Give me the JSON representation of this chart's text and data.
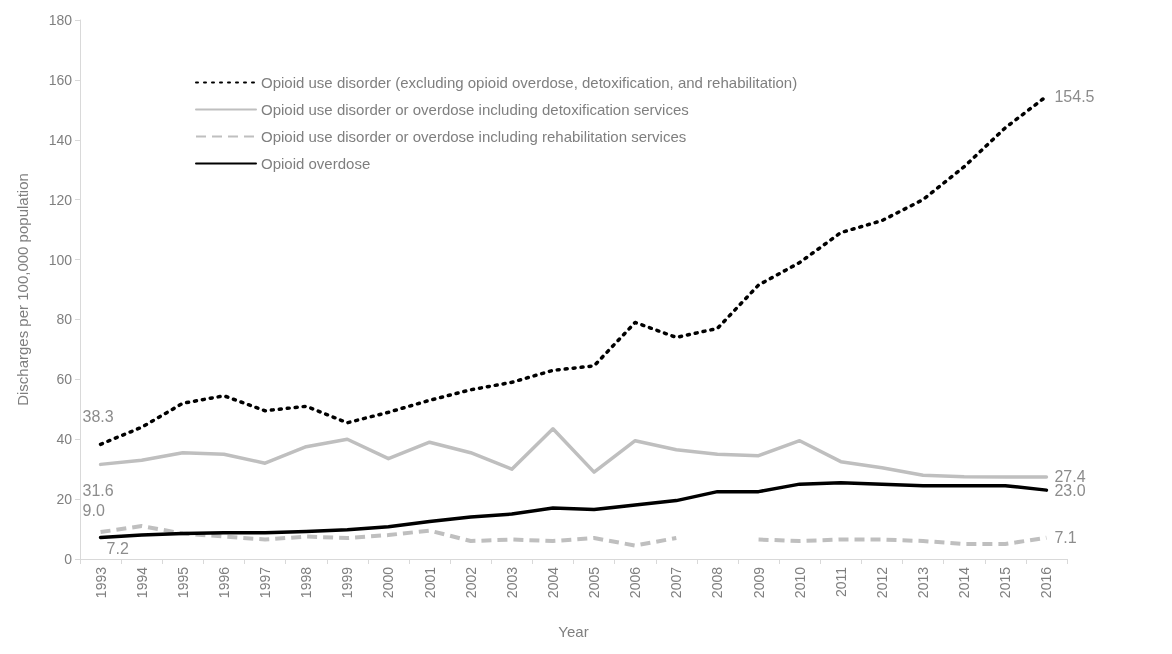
{
  "chart_data": {
    "type": "line",
    "xlabel": "Year",
    "ylabel": "Discharges per 100,000 population",
    "categories": [
      "1993",
      "1994",
      "1995",
      "1996",
      "1997",
      "1998",
      "1999",
      "2000",
      "2001",
      "2002",
      "2003",
      "2004",
      "2005",
      "2006",
      "2007",
      "2008",
      "2009",
      "2010",
      "2011",
      "2012",
      "2013",
      "2014",
      "2015",
      "2016"
    ],
    "ylim": [
      0,
      180
    ],
    "yticks": [
      0,
      20,
      40,
      60,
      80,
      100,
      120,
      140,
      160,
      180
    ],
    "grid": false,
    "legend": "top left",
    "marker": "none",
    "series": [
      {
        "name": "Opioid use disorder (excluding opioid overdose, detoxification, and rehabilitation)",
        "color": "#000000",
        "line_style": "dotted",
        "values": [
          38.3,
          44,
          52,
          54.5,
          49.5,
          51,
          45.5,
          49,
          53,
          56.5,
          59,
          63,
          64.5,
          79,
          74,
          77,
          91.5,
          99,
          109,
          113,
          120,
          131,
          144,
          154.5
        ],
        "value_labels": [
          "38.3",
          null,
          null,
          null,
          null,
          null,
          null,
          null,
          null,
          null,
          null,
          null,
          null,
          null,
          null,
          null,
          null,
          null,
          null,
          null,
          null,
          null,
          null,
          "154.5"
        ]
      },
      {
        "name": "Opioid use disorder or overdose including detoxification services",
        "color": "#bfbfbf",
        "line_style": "solid",
        "values": [
          31.6,
          33,
          35.5,
          35,
          32,
          37.5,
          40,
          33.5,
          39,
          35.5,
          30,
          43.5,
          29,
          39.5,
          36.5,
          35,
          34.5,
          39.5,
          32.5,
          30.5,
          28,
          27.5,
          27.4,
          27.4
        ],
        "value_labels": [
          "31.6",
          null,
          null,
          null,
          null,
          null,
          null,
          null,
          null,
          null,
          null,
          null,
          null,
          null,
          null,
          null,
          null,
          null,
          null,
          null,
          null,
          null,
          null,
          "27.4"
        ]
      },
      {
        "name": "Opioid use disorder or overdose including rehabilitation services",
        "color": "#bfbfbf",
        "line_style": "dashed",
        "values": [
          9.0,
          11,
          8.5,
          7.5,
          6.5,
          7.5,
          7,
          8,
          9.5,
          6,
          6.5,
          6,
          7,
          4.5,
          7,
          null,
          6.5,
          6,
          6.5,
          6.5,
          6,
          5,
          5,
          7.1
        ],
        "value_labels": [
          "9.0",
          null,
          null,
          null,
          null,
          null,
          null,
          null,
          null,
          null,
          null,
          null,
          null,
          null,
          null,
          null,
          null,
          null,
          null,
          null,
          null,
          null,
          null,
          "7.1"
        ]
      },
      {
        "name": "Opioid overdose",
        "color": "#000000",
        "line_style": "solid",
        "values": [
          7.2,
          8,
          8.5,
          8.8,
          8.8,
          9.2,
          9.8,
          10.8,
          12.5,
          14,
          15,
          17,
          16.5,
          18,
          19.5,
          22.5,
          22.5,
          25,
          25.5,
          25,
          24.5,
          24.5,
          24.5,
          23.0
        ],
        "value_labels": [
          "7.2",
          null,
          null,
          null,
          null,
          null,
          null,
          null,
          null,
          null,
          null,
          null,
          null,
          null,
          null,
          null,
          null,
          null,
          null,
          null,
          null,
          null,
          null,
          "23.0"
        ]
      }
    ]
  }
}
